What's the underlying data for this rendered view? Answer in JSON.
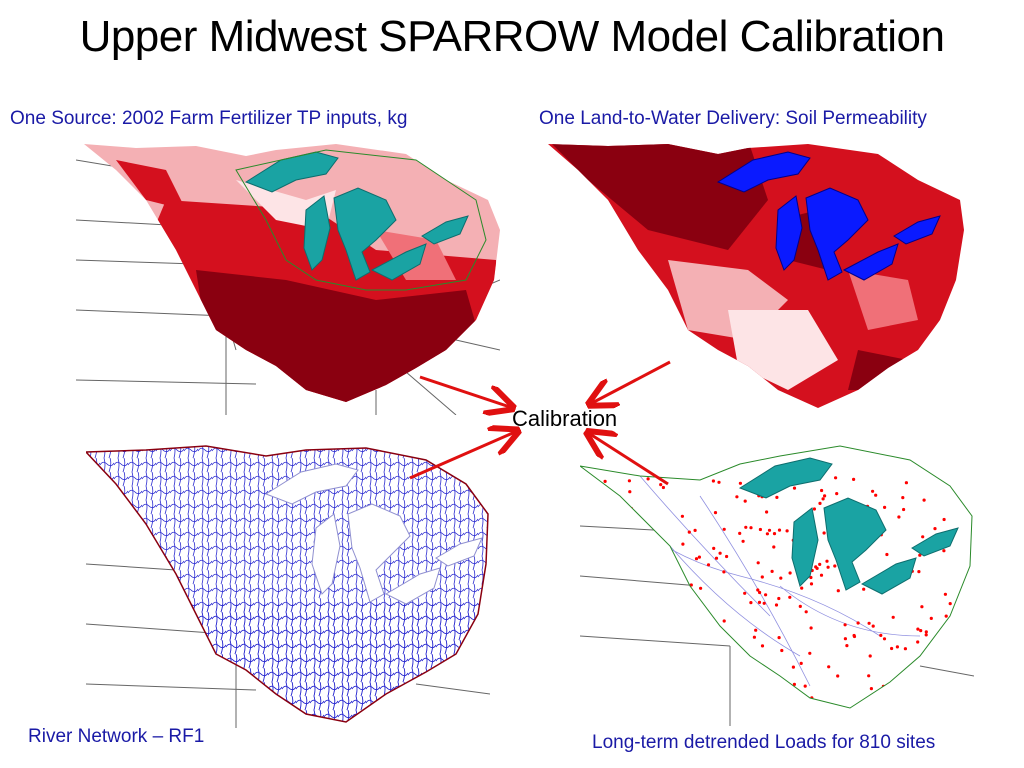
{
  "title": "Upper Midwest SPARROW Model Calibration",
  "center_label": "Calibration",
  "panels": {
    "top_left": {
      "caption": "One Source: 2002 Farm Fertilizer TP inputs, kg"
    },
    "top_right": {
      "caption": "One Land-to-Water Delivery: Soil Permeability"
    },
    "bottom_left": {
      "caption": "River Network – RF1"
    },
    "bottom_right": {
      "caption": "Long-term detrended Loads for 810 sites"
    }
  },
  "colors": {
    "caption_text": "#1a1aa6",
    "lake_teal": "#1aa3a3",
    "lake_blue": "#0a1aff",
    "fertilizer_dark": "#8a0010",
    "fertilizer_mid": "#d4101e",
    "fertilizer_light": "#f4b0b4",
    "river_blue": "#2a2ad0",
    "site_dot": "#ff0000",
    "arrow": "#e01010"
  }
}
